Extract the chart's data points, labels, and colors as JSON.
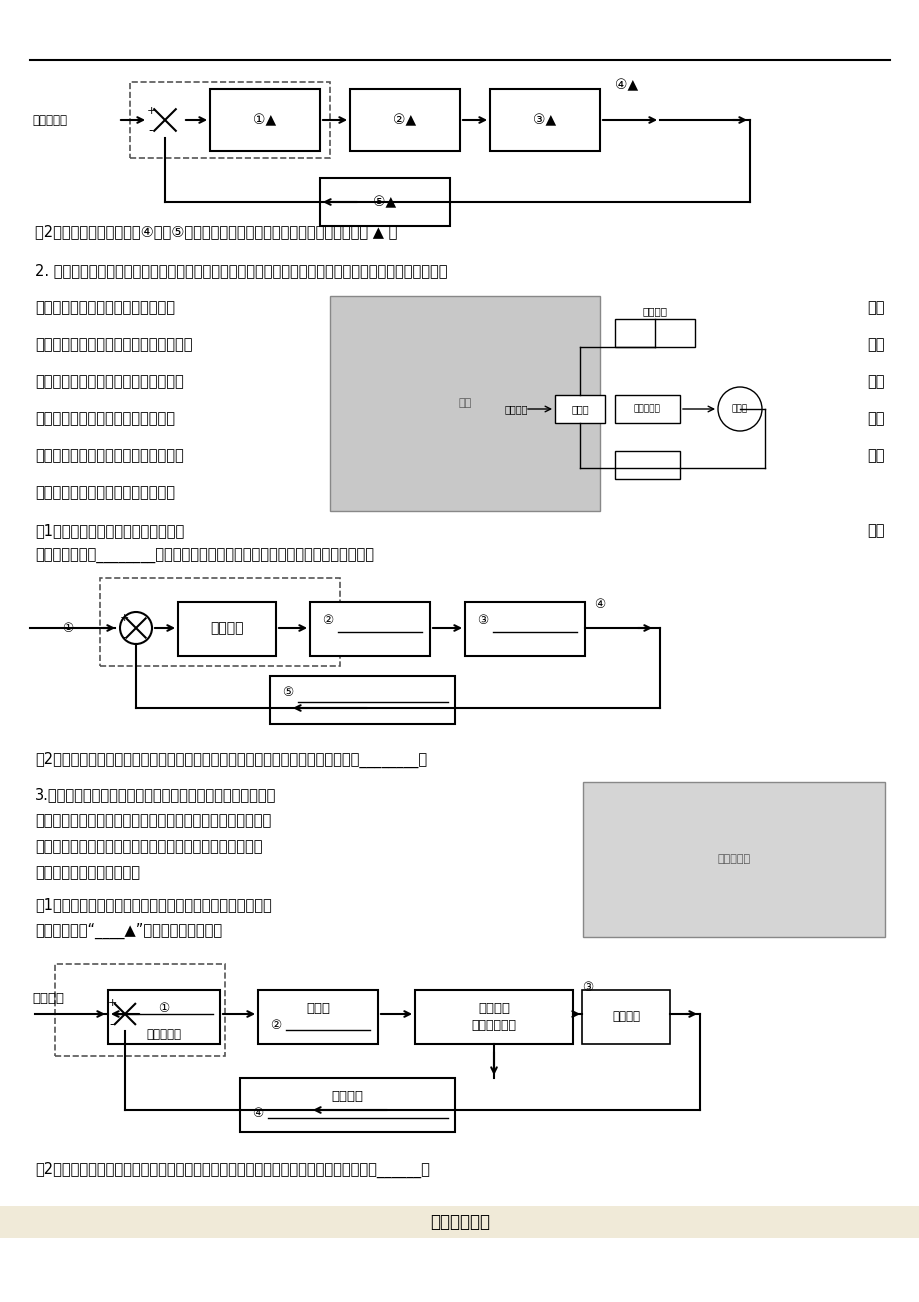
{
  "bg_color": "#ffffff",
  "page_width": 9.2,
  "page_height": 13.02,
  "lines_left": [
    "使地球仪产生感应电流，由于线圈产",
    "磁场和地球磁感应电流的磁场是相斥的，",
    "产生电磁悬浮力，将地球仪悬浮起来。",
    "传感器检测地球仪位置，并将检测到",
    "号发送给控制器与设定信号进行比较，",
    "器根据比较偏差值调整交流电信号。"
  ],
  "lines_right": [
    "生的",
    "从而",
    "位置",
    "的信",
    "控制",
    ""
  ],
  "footer": "【欢迎阅读】"
}
